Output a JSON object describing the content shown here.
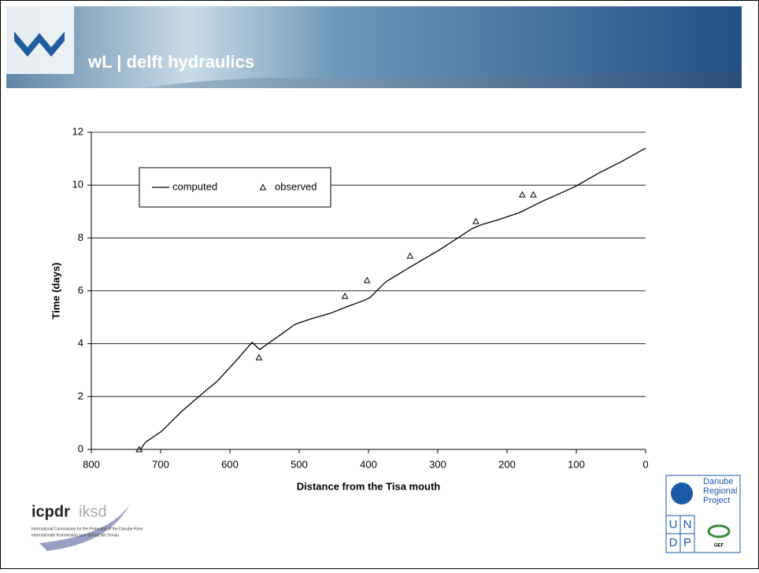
{
  "header": {
    "brand": "wL | delft hydraulics"
  },
  "logos": {
    "icpdr": "icpdr",
    "iksd": "iksd",
    "icpdr_caption": "International Commission for the Protection of the Danube River",
    "iksd_caption": "Internationale Kommission zum Schutz der Donau",
    "drp": [
      "Danube",
      "Regional",
      "Project"
    ],
    "undp": [
      "U",
      "N",
      "D",
      "P"
    ],
    "gef": "GEF"
  },
  "chart_data": {
    "type": "line",
    "xlabel": "Distance from the Tisa mouth",
    "ylabel": "Time (days)",
    "xlim": [
      800,
      0
    ],
    "xticks": [
      800,
      700,
      600,
      500,
      400,
      300,
      200,
      100,
      0
    ],
    "ylim": [
      0,
      12
    ],
    "yticks": [
      0,
      2,
      4,
      6,
      8,
      10,
      12
    ],
    "grid": true,
    "legend": "upper left",
    "series": [
      {
        "name": "computed",
        "color": "#000000",
        "style": "line",
        "x": [
          729,
          722,
          699,
          670,
          636,
          619,
          591,
          568,
          557,
          528,
          506,
          500,
          483,
          455,
          432,
          407,
          398,
          375,
          341,
          295,
          250,
          236,
          216,
          182,
          148,
          102,
          68,
          34,
          0
        ],
        "values": [
          0,
          0.27,
          0.68,
          1.43,
          2.2,
          2.56,
          3.36,
          4.05,
          3.78,
          4.32,
          4.73,
          4.79,
          4.94,
          5.15,
          5.39,
          5.63,
          5.74,
          6.34,
          6.88,
          7.59,
          8.36,
          8.51,
          8.66,
          8.96,
          9.4,
          9.94,
          10.45,
          10.9,
          11.4
        ]
      },
      {
        "name": "observed",
        "color": "#000000",
        "style": "triangle",
        "x": [
          731,
          558,
          434,
          402,
          340,
          245,
          178,
          162
        ],
        "values": [
          0,
          3.48,
          5.8,
          6.4,
          7.32,
          8.63,
          9.64,
          9.64
        ]
      }
    ]
  }
}
